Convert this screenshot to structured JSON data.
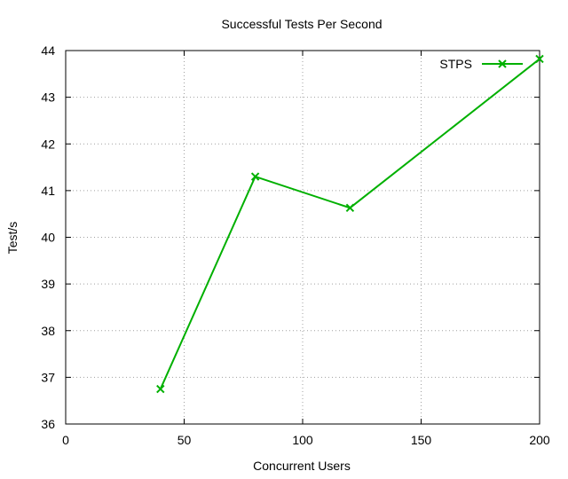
{
  "chart_data": {
    "type": "line",
    "title": "Successful Tests Per Second",
    "xlabel": "Concurrent Users",
    "ylabel": "Test/s",
    "xlim": [
      0,
      200
    ],
    "ylim": [
      36,
      44
    ],
    "x_ticks": [
      0,
      50,
      100,
      150,
      200
    ],
    "y_ticks": [
      36,
      37,
      38,
      39,
      40,
      41,
      42,
      43,
      44
    ],
    "grid": true,
    "legend_position": "top-right",
    "series": [
      {
        "name": "STPS",
        "color": "#00b000",
        "marker": "x",
        "x": [
          40,
          80,
          120,
          200
        ],
        "values": [
          36.75,
          41.3,
          40.63,
          43.82
        ]
      }
    ]
  }
}
